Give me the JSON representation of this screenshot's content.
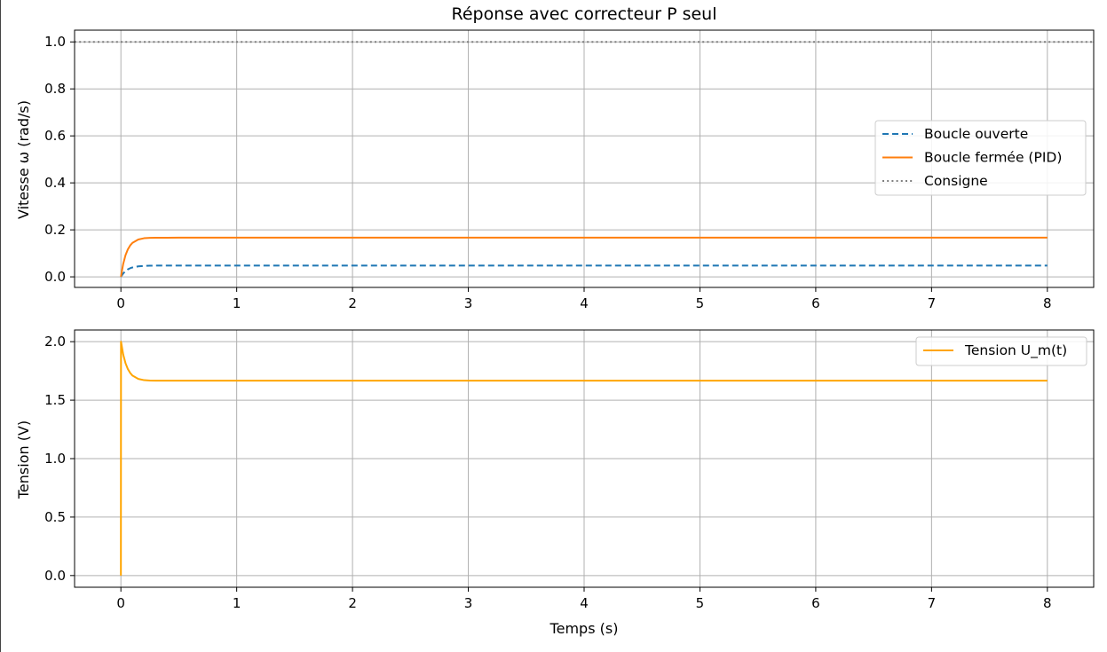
{
  "chart_data": [
    {
      "type": "line",
      "title": "Réponse avec correcteur P seul",
      "xlabel": "",
      "ylabel": "Vitesse ω (rad/s)",
      "xlim": [
        -0.4,
        8.4
      ],
      "ylim": [
        -0.045,
        1.05
      ],
      "xticks": [
        0,
        1,
        2,
        3,
        4,
        5,
        6,
        7,
        8
      ],
      "yticks": [
        0.0,
        0.2,
        0.4,
        0.6,
        0.8,
        1.0
      ],
      "grid": true,
      "legend": "center-right",
      "series": [
        {
          "name": "Boucle ouverte",
          "color": "#1f77b4",
          "style": "dashed",
          "x": [
            0,
            0.02,
            0.04,
            0.06,
            0.08,
            0.1,
            0.15,
            0.2,
            0.25,
            0.3,
            0.4,
            0.5,
            0.6,
            0.8,
            1.0,
            2,
            3,
            4,
            5,
            6,
            7,
            8
          ],
          "y": [
            0,
            0.0146,
            0.0247,
            0.0318,
            0.0367,
            0.0401,
            0.0446,
            0.0466,
            0.0474,
            0.0478,
            0.048,
            0.0481,
            0.0481,
            0.0481,
            0.0481,
            0.0481,
            0.0481,
            0.0481,
            0.0481,
            0.0481,
            0.0481,
            0.0481
          ]
        },
        {
          "name": "Boucle fermée (PID)",
          "color": "#ff7f0e",
          "style": "solid",
          "x": [
            0,
            0.02,
            0.04,
            0.06,
            0.08,
            0.1,
            0.15,
            0.2,
            0.25,
            0.3,
            0.4,
            0.5,
            0.6,
            0.8,
            1.0,
            2,
            3,
            4,
            5,
            6,
            7,
            8
          ],
          "y": [
            0,
            0.0552,
            0.0922,
            0.117,
            0.1336,
            0.1448,
            0.159,
            0.1644,
            0.1659,
            0.1664,
            0.1666,
            0.1667,
            0.1667,
            0.1667,
            0.1667,
            0.1667,
            0.1667,
            0.1667,
            0.1667,
            0.1667,
            0.1667,
            0.1667
          ]
        },
        {
          "name": "Consigne",
          "color": "#7f7f7f",
          "style": "dotted",
          "x": [
            -0.4,
            8.4
          ],
          "y": [
            1.0,
            1.0
          ]
        }
      ]
    },
    {
      "type": "line",
      "title": "",
      "xlabel": "Temps (s)",
      "ylabel": "Tension (V)",
      "xlim": [
        -0.4,
        8.4
      ],
      "ylim": [
        -0.1,
        2.1
      ],
      "xticks": [
        0,
        1,
        2,
        3,
        4,
        5,
        6,
        7,
        8
      ],
      "yticks": [
        0.0,
        0.5,
        1.0,
        1.5,
        2.0
      ],
      "grid": true,
      "legend": "top-right",
      "series": [
        {
          "name": "Tension U_m(t)",
          "color": "#ffa500",
          "style": "solid",
          "x": [
            0,
            0.001,
            0.02,
            0.04,
            0.06,
            0.08,
            0.1,
            0.15,
            0.2,
            0.25,
            0.3,
            0.4,
            0.5,
            0.6,
            0.8,
            1.0,
            2,
            3,
            4,
            5,
            6,
            7,
            8
          ],
          "y": [
            0,
            2.0,
            1.89,
            1.816,
            1.766,
            1.733,
            1.71,
            1.682,
            1.671,
            1.668,
            1.667,
            1.667,
            1.667,
            1.667,
            1.667,
            1.667,
            1.667,
            1.667,
            1.667,
            1.667,
            1.667,
            1.667,
            1.667
          ]
        }
      ]
    }
  ]
}
